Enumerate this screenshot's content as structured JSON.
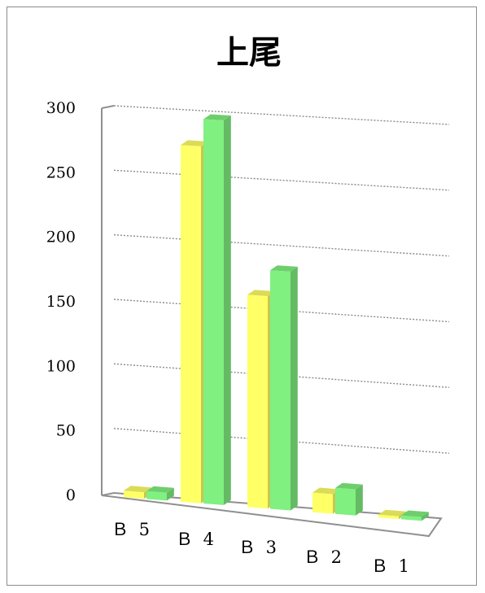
{
  "chart_data": {
    "type": "bar",
    "title": "上尾",
    "categories": [
      "Ｂ５",
      "Ｂ４",
      "Ｂ３",
      "Ｂ２",
      "Ｂ１"
    ],
    "category_labels": [
      "Ｂ 5",
      "Ｂ 4",
      "Ｂ 3",
      "Ｂ 2",
      "Ｂ 1"
    ],
    "series": [
      {
        "values": [
          5,
          275,
          163,
          15,
          2
        ],
        "color": "#ffff66"
      },
      {
        "values": [
          6,
          296,
          183,
          20,
          3
        ],
        "color": "#80f080"
      }
    ],
    "ylim": [
      0,
      300
    ],
    "yticks": [
      "0",
      "50",
      "100",
      "150",
      "200",
      "250",
      "300"
    ],
    "grid": true,
    "style": "3d-perspective"
  }
}
